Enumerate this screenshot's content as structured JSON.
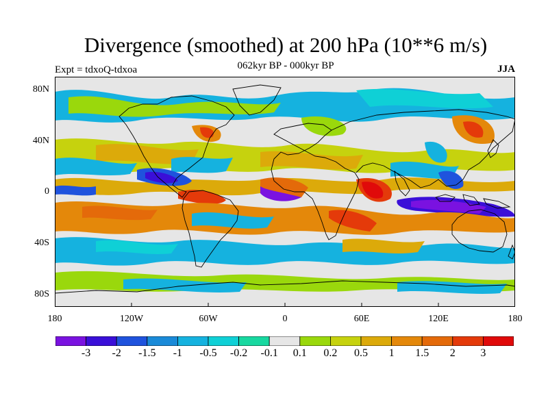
{
  "title": "Divergence (smoothed) at 200 hPa (10**6 m/s)",
  "subtitle": "062kyr BP - 000kyr BP",
  "experiment": "Expt = tdxoQ-tdxoa",
  "season": "JJA",
  "map": {
    "projection": "cylindrical-equidistant",
    "lat_ticks": [
      "80N",
      "40N",
      "0",
      "40S",
      "80S"
    ],
    "lon_ticks": [
      "180",
      "120W",
      "60W",
      "0",
      "60E",
      "120E",
      "180"
    ]
  },
  "colorbar": {
    "colors": [
      "#7a12e0",
      "#3a0fd8",
      "#1f53dd",
      "#1a8ad8",
      "#15b2df",
      "#0fd0d6",
      "#18d8a0",
      "#e6e6e6",
      "#9ad80c",
      "#c6d20e",
      "#dcaa0a",
      "#e4880a",
      "#e46a0a",
      "#e43a0a",
      "#e00a0a"
    ],
    "labels": [
      "-3",
      "-2",
      "-1.5",
      "-1",
      "-0.5",
      "-0.2",
      "-0.1",
      "0.1",
      "0.2",
      "0.5",
      "1",
      "1.5",
      "2",
      "3"
    ]
  }
}
